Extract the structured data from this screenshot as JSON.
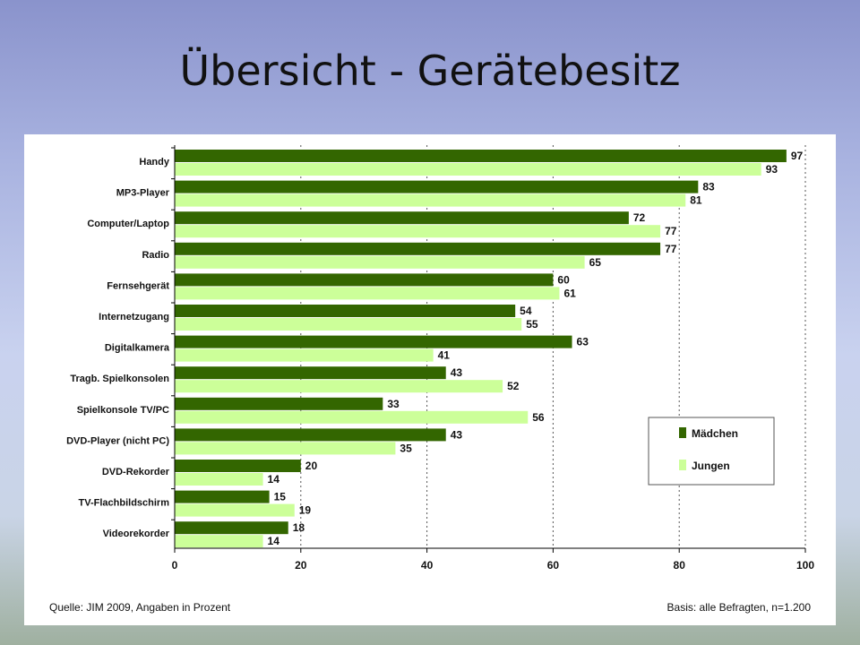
{
  "slide": {
    "title": "Übersicht - Gerätebesitz"
  },
  "chart_data": {
    "type": "bar",
    "orientation": "horizontal",
    "categories": [
      "Handy",
      "MP3-Player",
      "Computer/Laptop",
      "Radio",
      "Fernsehgerät",
      "Internetzugang",
      "Digitalkamera",
      "Tragb. Spielkonsolen",
      "Spielkonsole TV/PC",
      "DVD-Player (nicht PC)",
      "DVD-Rekorder",
      "TV-Flachbildschirm",
      "Videorekorder"
    ],
    "series": [
      {
        "name": "Mädchen",
        "color": "#336600",
        "values": [
          97,
          83,
          72,
          77,
          60,
          54,
          63,
          43,
          33,
          43,
          20,
          15,
          18
        ]
      },
      {
        "name": "Jungen",
        "color": "#ccff99",
        "values": [
          93,
          81,
          77,
          65,
          61,
          55,
          41,
          52,
          56,
          35,
          14,
          19,
          14
        ]
      }
    ],
    "xlim": [
      0,
      100
    ],
    "xticks": [
      "0",
      "20",
      "40",
      "60",
      "80",
      "100"
    ],
    "grid": "vertical dotted at 20, 40, 60, 80, 100",
    "legend_position": "bottom-right",
    "source": "Quelle: JIM 2009, Angaben in Prozent",
    "basis": "Basis: alle Befragten, n=1.200"
  }
}
